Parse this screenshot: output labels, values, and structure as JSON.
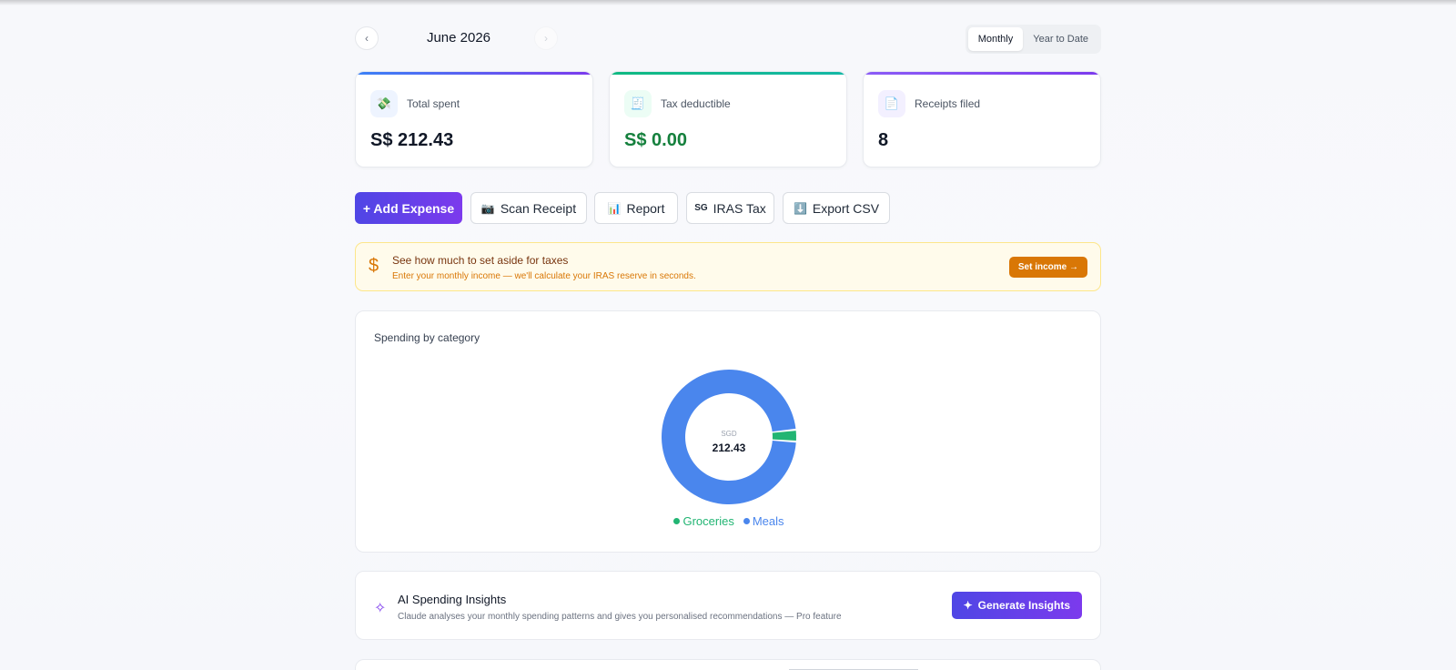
{
  "month_nav": {
    "prev_icon": "chevron-left-icon",
    "next_icon": "chevron-right-icon",
    "prev_glyph": "‹",
    "next_glyph": "›",
    "label": "June 2026",
    "view_options": [
      "Monthly",
      "Year to Date"
    ],
    "selected_view": "Monthly"
  },
  "stats": [
    {
      "icon": "money-icon",
      "glyph": "💸",
      "label": "Total spent",
      "value": "S$ 212.43",
      "value_color": "#111827",
      "accent": "#4f46e5"
    },
    {
      "icon": "ledger-icon",
      "glyph": "🧾",
      "label": "Tax deductible",
      "value": "S$ 0.00",
      "value_color": "#15803d",
      "accent": "#10b981"
    },
    {
      "icon": "receipt-icon",
      "glyph": "📄",
      "label": "Receipts filed",
      "value": "8",
      "value_color": "#111827",
      "accent": "#7c3aed"
    }
  ],
  "actions": {
    "add_expense": "+ Add Expense",
    "scan_receipt_icon": "📷",
    "scan_receipt": "Scan Receipt",
    "report_icon": "📊",
    "report": "Report",
    "iras_icon": "SG",
    "iras_tax": "IRAS Tax",
    "export_icon": "⬇️",
    "export_csv": "Export CSV"
  },
  "tax_banner": {
    "icon": "dollar-icon",
    "glyph": "$",
    "title": "See how much to set aside for taxes",
    "subtitle": "Enter your monthly income — we'll calculate your IRAS reserve in seconds.",
    "button": "Set income →"
  },
  "chart_card": {
    "title": "Spending by category",
    "center_unit": "SGD",
    "center_value": "212.43"
  },
  "chart_data": {
    "type": "pie",
    "style": "donut",
    "title": "Spending by category",
    "categories": [
      "Groceries",
      "Meals"
    ],
    "values": [
      6.0,
      206.43
    ],
    "colors": [
      "#22b573",
      "#4a86ed"
    ],
    "legend": "bottom"
  },
  "insights": {
    "icon": "sparkle-icon",
    "glyph": "✧",
    "title": "AI Spending Insights",
    "subtitle": "Claude analyses your monthly spending patterns and gives you personalised recommendations — Pro feature",
    "button_icon": "✦",
    "button": "Generate Insights"
  }
}
